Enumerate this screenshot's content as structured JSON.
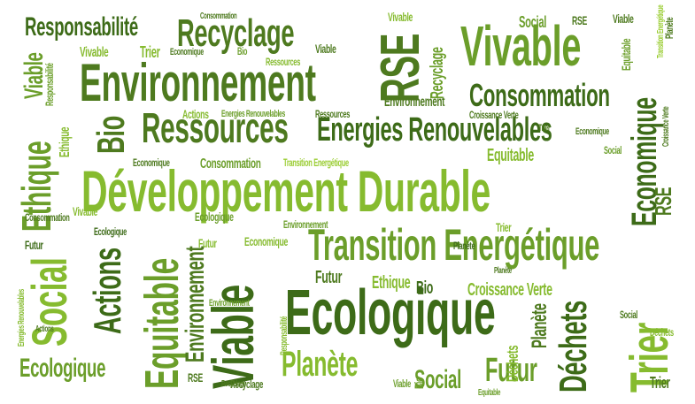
{
  "words": [
    "Développement Durable",
    "Ecologique",
    "Environnement",
    "Transition Energétique",
    "Vivable",
    "Ressources",
    "Energies Renouvelables",
    "Recyclage",
    "Consommation",
    "Responsabilité",
    "RSE",
    "Social",
    "Ethique",
    "Bio",
    "Viable",
    "Actions",
    "Equitable",
    "Environnement",
    "Economique",
    "Trier",
    "Planète",
    "Futur",
    "Déchets",
    "Croissance Verte",
    "Social",
    "Futur",
    "Ecologique",
    "RSE",
    "Planète",
    "Déchets",
    "Viable",
    "Trier",
    "Recyclage",
    "Transition Energétique",
    "Ressources",
    "Equitable",
    "Actions",
    "Energies Renouvelables",
    "Consommation",
    "Environnement",
    "Bio",
    "Ethique",
    "Croissance Verte",
    "Economique",
    "Social",
    "Vivable",
    "Trier",
    "Responsabilité",
    "Consommation",
    "Recyclage",
    "Responsabilité",
    "Futur",
    "Viable",
    "Bio",
    "Equitable",
    "Planète",
    "Déchets",
    "Ecologique",
    "Trier",
    "Economique",
    "Environnement",
    "Ressources",
    "Social",
    "Futur",
    "Viable",
    "RSE",
    "Ethique",
    "Vivable",
    "Actions",
    "Croissance Verte",
    "Economique",
    "Recyclage",
    "Transition Energétique",
    "Energies Renouvelables",
    "Ecologique",
    "Planète",
    "Social",
    "Bio",
    "Consommation",
    "Environnement",
    "Vivable",
    "RSE",
    "Equitable",
    "Viable",
    "Economique",
    "Trier",
    "Planète"
  ]
}
